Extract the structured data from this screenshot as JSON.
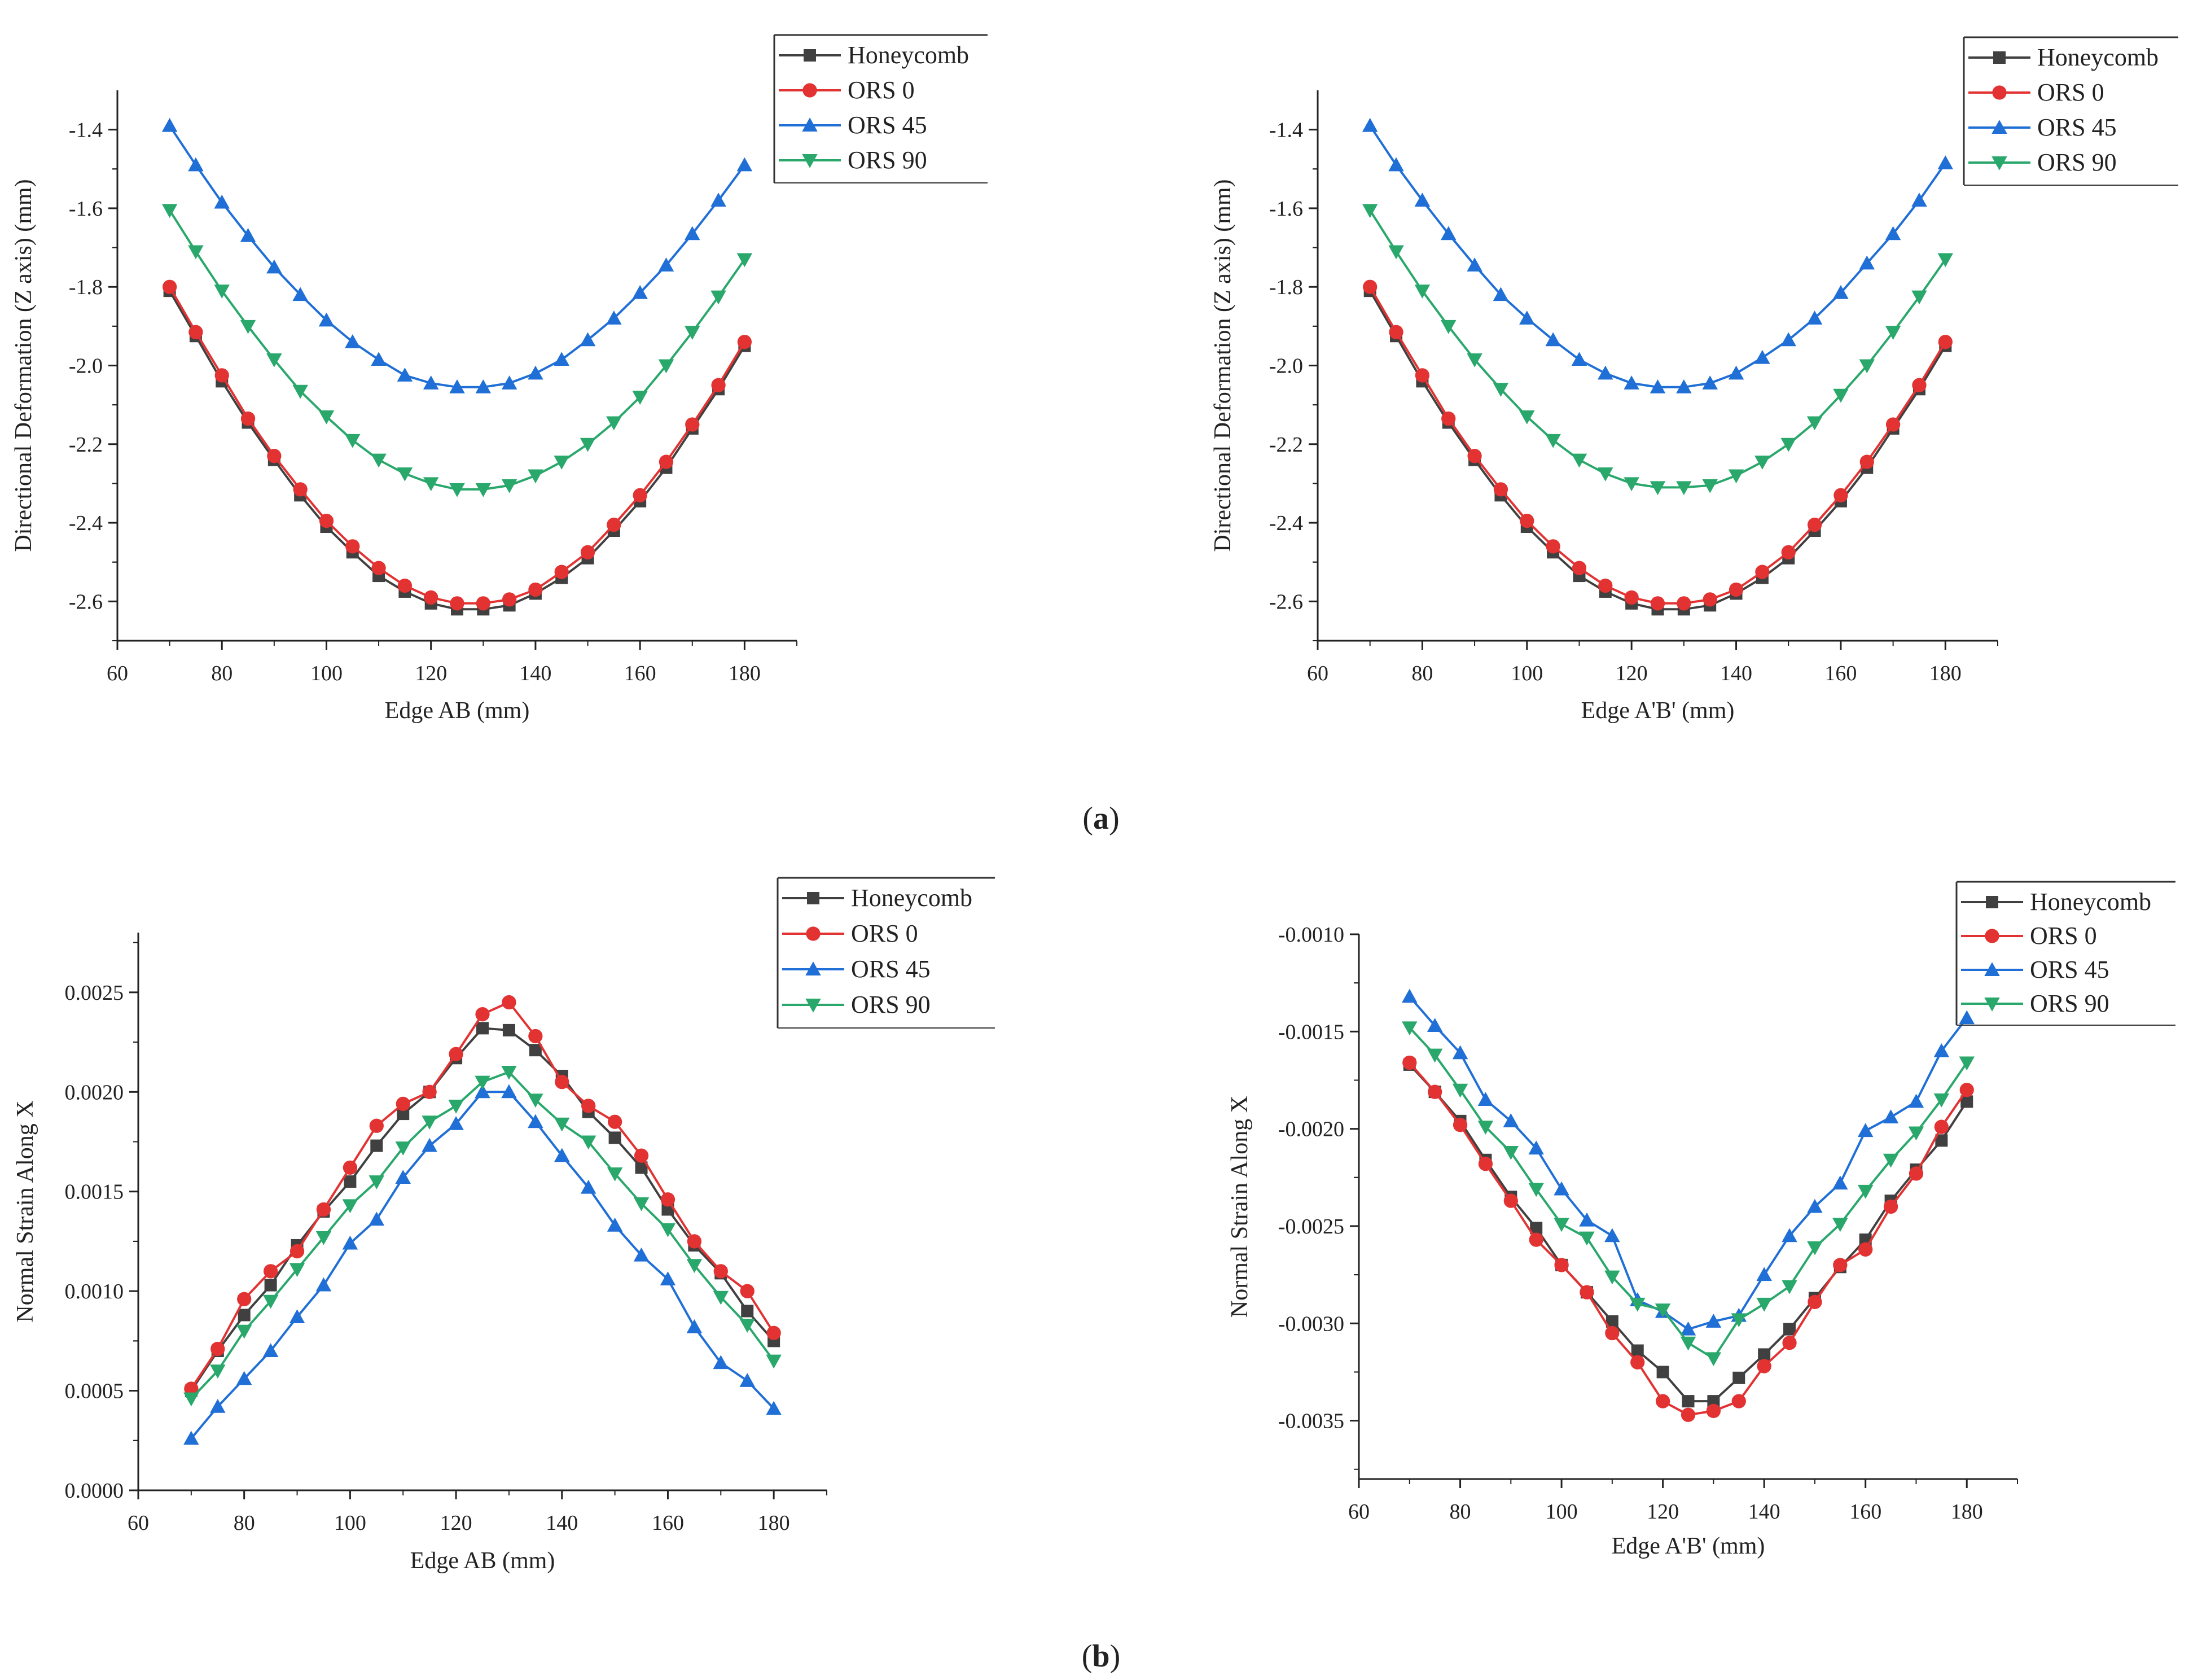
{
  "panel_labels": {
    "a": "(a)",
    "a_letter": "a",
    "b": "(b)",
    "b_letter": "b"
  },
  "colors": {
    "Honeycomb": "#404040",
    "ORS 0": "#e23232",
    "ORS 45": "#1f6fd6",
    "ORS 90": "#2aa86c"
  },
  "chart_data": [
    {
      "id": "a-left",
      "type": "line",
      "title": "",
      "xlabel": "Edge AB (mm)",
      "ylabel": "Directional Deformation (Z axis) (mm)",
      "xlim": [
        60,
        190
      ],
      "ylim": [
        -2.7,
        -1.3
      ],
      "xticks": [
        "60",
        "80",
        "100",
        "120",
        "140",
        "160",
        "180"
      ],
      "yticks": [
        "-1.4",
        "-1.6",
        "-1.8",
        "-2.0",
        "-2.2",
        "-2.4",
        "-2.6"
      ],
      "x": [
        70,
        75,
        80,
        85,
        90,
        95,
        100,
        105,
        110,
        115,
        120,
        125,
        130,
        135,
        140,
        145,
        150,
        155,
        160,
        165,
        170,
        175,
        180
      ],
      "series": [
        {
          "name": "Honeycomb",
          "marker": "square",
          "values": [
            -1.81,
            -1.925,
            -2.04,
            -2.145,
            -2.24,
            -2.33,
            -2.41,
            -2.475,
            -2.535,
            -2.575,
            -2.605,
            -2.62,
            -2.62,
            -2.61,
            -2.58,
            -2.54,
            -2.49,
            -2.42,
            -2.345,
            -2.26,
            -2.16,
            -2.06,
            -1.95
          ]
        },
        {
          "name": "ORS 0",
          "marker": "circle",
          "values": [
            -1.8,
            -1.915,
            -2.025,
            -2.135,
            -2.23,
            -2.315,
            -2.395,
            -2.46,
            -2.515,
            -2.56,
            -2.59,
            -2.605,
            -2.605,
            -2.595,
            -2.57,
            -2.525,
            -2.475,
            -2.405,
            -2.33,
            -2.245,
            -2.15,
            -2.05,
            -1.94
          ]
        },
        {
          "name": "ORS 45",
          "marker": "triangle-up",
          "values": [
            -1.39,
            -1.49,
            -1.585,
            -1.67,
            -1.75,
            -1.82,
            -1.885,
            -1.94,
            -1.985,
            -2.025,
            -2.045,
            -2.055,
            -2.055,
            -2.045,
            -2.02,
            -1.985,
            -1.935,
            -1.88,
            -1.815,
            -1.745,
            -1.665,
            -1.58,
            -1.49
          ]
        },
        {
          "name": "ORS 90",
          "marker": "triangle-down",
          "values": [
            -1.605,
            -1.71,
            -1.81,
            -1.9,
            -1.985,
            -2.065,
            -2.13,
            -2.19,
            -2.24,
            -2.275,
            -2.3,
            -2.315,
            -2.315,
            -2.305,
            -2.28,
            -2.245,
            -2.2,
            -2.145,
            -2.08,
            -2.0,
            -1.915,
            -1.825,
            -1.73
          ]
        }
      ],
      "legend": "top-right, outside"
    },
    {
      "id": "a-right",
      "type": "line",
      "title": "",
      "xlabel": "Edge A'B' (mm)",
      "ylabel": "Directional Deformation (Z axis) (mm)",
      "xlim": [
        60,
        190
      ],
      "ylim": [
        -2.7,
        -1.3
      ],
      "xticks": [
        "60",
        "80",
        "100",
        "120",
        "140",
        "160",
        "180"
      ],
      "yticks": [
        "-1.4",
        "-1.6",
        "-1.8",
        "-2.0",
        "-2.2",
        "-2.4",
        "-2.6"
      ],
      "x": [
        70,
        75,
        80,
        85,
        90,
        95,
        100,
        105,
        110,
        115,
        120,
        125,
        130,
        135,
        140,
        145,
        150,
        155,
        160,
        165,
        170,
        175,
        180
      ],
      "series": [
        {
          "name": "Honeycomb",
          "marker": "square",
          "values": [
            -1.81,
            -1.925,
            -2.04,
            -2.145,
            -2.24,
            -2.33,
            -2.41,
            -2.475,
            -2.535,
            -2.575,
            -2.605,
            -2.62,
            -2.62,
            -2.61,
            -2.58,
            -2.54,
            -2.49,
            -2.42,
            -2.345,
            -2.26,
            -2.16,
            -2.06,
            -1.95
          ]
        },
        {
          "name": "ORS 0",
          "marker": "circle",
          "values": [
            -1.8,
            -1.915,
            -2.025,
            -2.135,
            -2.23,
            -2.315,
            -2.395,
            -2.46,
            -2.515,
            -2.56,
            -2.59,
            -2.605,
            -2.605,
            -2.595,
            -2.57,
            -2.525,
            -2.475,
            -2.405,
            -2.33,
            -2.245,
            -2.15,
            -2.05,
            -1.94
          ]
        },
        {
          "name": "ORS 45",
          "marker": "triangle-up",
          "values": [
            -1.39,
            -1.49,
            -1.58,
            -1.665,
            -1.745,
            -1.82,
            -1.88,
            -1.935,
            -1.985,
            -2.02,
            -2.045,
            -2.055,
            -2.055,
            -2.045,
            -2.02,
            -1.98,
            -1.935,
            -1.88,
            -1.815,
            -1.74,
            -1.665,
            -1.58,
            -1.485
          ]
        },
        {
          "name": "ORS 90",
          "marker": "triangle-down",
          "values": [
            -1.605,
            -1.71,
            -1.81,
            -1.9,
            -1.985,
            -2.06,
            -2.13,
            -2.19,
            -2.24,
            -2.275,
            -2.3,
            -2.31,
            -2.31,
            -2.305,
            -2.28,
            -2.245,
            -2.2,
            -2.145,
            -2.075,
            -2.0,
            -1.915,
            -1.825,
            -1.73
          ]
        }
      ],
      "legend": "top-right, outside"
    },
    {
      "id": "b-left",
      "type": "line",
      "title": "",
      "xlabel": "Edge AB (mm)",
      "ylabel": "Normal Strain Along X",
      "xlim": [
        60,
        190
      ],
      "ylim": [
        0.0,
        0.0028
      ],
      "xticks": [
        "60",
        "80",
        "100",
        "120",
        "140",
        "160",
        "180"
      ],
      "yticks": [
        "0.0000",
        "0.0005",
        "0.0010",
        "0.0015",
        "0.0020",
        "0.0025"
      ],
      "x": [
        70,
        75,
        80,
        85,
        90,
        95,
        100,
        105,
        110,
        115,
        120,
        125,
        130,
        135,
        140,
        145,
        150,
        155,
        160,
        165,
        170,
        175,
        180
      ],
      "series": [
        {
          "name": "Honeycomb",
          "marker": "square",
          "values": [
            0.0005,
            0.0007,
            0.00088,
            0.00103,
            0.00123,
            0.0014,
            0.00155,
            0.00173,
            0.00189,
            0.002,
            0.00217,
            0.00232,
            0.00231,
            0.00221,
            0.00208,
            0.0019,
            0.00177,
            0.00162,
            0.00141,
            0.00123,
            0.00109,
            0.0009,
            0.00075
          ]
        },
        {
          "name": "ORS 0",
          "marker": "circle",
          "values": [
            0.00051,
            0.00071,
            0.00096,
            0.0011,
            0.0012,
            0.00141,
            0.00162,
            0.00183,
            0.00194,
            0.002,
            0.00219,
            0.00239,
            0.00245,
            0.00228,
            0.00205,
            0.00193,
            0.00185,
            0.00168,
            0.00146,
            0.00125,
            0.0011,
            0.001,
            0.00079
          ]
        },
        {
          "name": "ORS 45",
          "marker": "triangle-up",
          "values": [
            0.00026,
            0.00042,
            0.00056,
            0.0007,
            0.00087,
            0.00103,
            0.00124,
            0.00136,
            0.00157,
            0.00173,
            0.00184,
            0.002,
            0.002,
            0.00185,
            0.00168,
            0.00152,
            0.00133,
            0.00118,
            0.00106,
            0.00082,
            0.00064,
            0.00055,
            0.00041
          ]
        },
        {
          "name": "ORS 90",
          "marker": "triangle-down",
          "values": [
            0.00046,
            0.0006,
            0.0008,
            0.00095,
            0.00111,
            0.00127,
            0.00143,
            0.00155,
            0.00172,
            0.00185,
            0.00193,
            0.00205,
            0.0021,
            0.00196,
            0.00184,
            0.00175,
            0.00159,
            0.00144,
            0.00131,
            0.00113,
            0.00097,
            0.00083,
            0.00065
          ]
        }
      ],
      "legend": "top-right, outside"
    },
    {
      "id": "b-right",
      "type": "line",
      "title": "",
      "xlabel": "Edge A'B' (mm)",
      "ylabel": "Normal Strain Along X",
      "xlim": [
        60,
        190
      ],
      "ylim": [
        -0.0038,
        -0.001
      ],
      "xticks": [
        "60",
        "80",
        "100",
        "120",
        "140",
        "160",
        "180"
      ],
      "yticks": [
        "-0.0010",
        "-0.0015",
        "-0.0020",
        "-0.0025",
        "-0.0030",
        "-0.0035"
      ],
      "x": [
        70,
        75,
        80,
        85,
        90,
        95,
        100,
        105,
        110,
        115,
        120,
        125,
        130,
        135,
        140,
        145,
        150,
        155,
        160,
        165,
        170,
        175,
        180
      ],
      "series": [
        {
          "name": "Honeycomb",
          "marker": "square",
          "values": [
            -0.00167,
            -0.00181,
            -0.00196,
            -0.00216,
            -0.00235,
            -0.00251,
            -0.0027,
            -0.00284,
            -0.00299,
            -0.00314,
            -0.00325,
            -0.0034,
            -0.0034,
            -0.00328,
            -0.00316,
            -0.00303,
            -0.00287,
            -0.00271,
            -0.00257,
            -0.00237,
            -0.00221,
            -0.00206,
            -0.00186
          ]
        },
        {
          "name": "ORS 0",
          "marker": "circle",
          "values": [
            -0.00166,
            -0.00181,
            -0.00198,
            -0.00218,
            -0.00237,
            -0.00257,
            -0.0027,
            -0.00284,
            -0.00305,
            -0.0032,
            -0.0034,
            -0.00347,
            -0.00345,
            -0.0034,
            -0.00322,
            -0.0031,
            -0.00289,
            -0.0027,
            -0.00262,
            -0.0024,
            -0.00223,
            -0.00199,
            -0.0018
          ]
        },
        {
          "name": "ORS 45",
          "marker": "triangle-up",
          "values": [
            -0.00132,
            -0.00147,
            -0.00161,
            -0.00185,
            -0.00196,
            -0.0021,
            -0.00231,
            -0.00247,
            -0.00255,
            -0.00288,
            -0.00294,
            -0.00303,
            -0.00299,
            -0.00296,
            -0.00275,
            -0.00255,
            -0.0024,
            -0.00228,
            -0.00201,
            -0.00194,
            -0.00186,
            -0.0016,
            -0.00143
          ]
        },
        {
          "name": "ORS 90",
          "marker": "triangle-down",
          "values": [
            -0.00148,
            -0.00162,
            -0.0018,
            -0.00199,
            -0.00212,
            -0.00231,
            -0.00249,
            -0.00256,
            -0.00276,
            -0.0029,
            -0.00293,
            -0.0031,
            -0.00318,
            -0.00298,
            -0.0029,
            -0.00281,
            -0.00261,
            -0.00249,
            -0.00232,
            -0.00216,
            -0.00202,
            -0.00185,
            -0.00166
          ]
        }
      ],
      "legend": "top-right, inside"
    }
  ]
}
